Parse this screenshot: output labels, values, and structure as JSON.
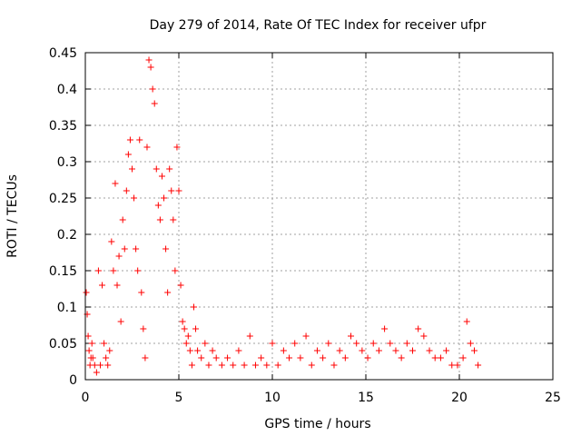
{
  "chart_data": {
    "type": "scatter",
    "title": "Day 279 of 2014, Rate Of TEC Index for receiver ufpr",
    "xlabel": "GPS time / hours",
    "ylabel": "ROTI / TECUs",
    "xlim": [
      0,
      25
    ],
    "ylim": [
      0,
      0.45
    ],
    "xticks": [
      "0",
      "5",
      "10",
      "15",
      "20",
      "25"
    ],
    "yticks": [
      "0",
      "0.05",
      "0.1",
      "0.15",
      "0.2",
      "0.25",
      "0.3",
      "0.35",
      "0.4",
      "0.45"
    ],
    "grid": true,
    "marker": "+",
    "color": "#ff0000",
    "series": [
      {
        "name": "ROTI",
        "x": [
          0.05,
          0.1,
          0.15,
          0.2,
          0.25,
          0.3,
          0.35,
          0.4,
          0.5,
          0.6,
          0.7,
          0.8,
          0.9,
          1.0,
          1.1,
          1.2,
          1.3,
          1.4,
          1.5,
          1.6,
          1.7,
          1.8,
          1.9,
          2.0,
          2.1,
          2.2,
          2.3,
          2.4,
          2.5,
          2.6,
          2.7,
          2.8,
          2.9,
          3.0,
          3.1,
          3.2,
          3.3,
          3.4,
          3.5,
          3.6,
          3.7,
          3.8,
          3.9,
          4.0,
          4.1,
          4.2,
          4.3,
          4.4,
          4.5,
          4.6,
          4.7,
          4.8,
          4.9,
          5.0,
          5.1,
          5.2,
          5.3,
          5.4,
          5.5,
          5.6,
          5.7,
          5.8,
          5.9,
          6.0,
          6.2,
          6.4,
          6.6,
          6.8,
          7.0,
          7.3,
          7.6,
          7.9,
          8.2,
          8.5,
          8.8,
          9.1,
          9.4,
          9.7,
          10.0,
          10.3,
          10.6,
          10.9,
          11.2,
          11.5,
          11.8,
          12.1,
          12.4,
          12.7,
          13.0,
          13.3,
          13.6,
          13.9,
          14.2,
          14.5,
          14.8,
          15.1,
          15.4,
          15.7,
          16.0,
          16.3,
          16.6,
          16.9,
          17.2,
          17.5,
          17.8,
          18.1,
          18.4,
          18.7,
          19.0,
          19.3,
          19.6,
          19.9,
          20.2,
          20.4,
          20.6,
          20.8,
          21.0
        ],
        "y": [
          0.12,
          0.09,
          0.06,
          0.04,
          0.02,
          0.03,
          0.05,
          0.03,
          0.02,
          0.01,
          0.15,
          0.02,
          0.13,
          0.05,
          0.03,
          0.02,
          0.04,
          0.19,
          0.15,
          0.27,
          0.13,
          0.17,
          0.08,
          0.22,
          0.18,
          0.26,
          0.31,
          0.33,
          0.29,
          0.25,
          0.18,
          0.15,
          0.33,
          0.12,
          0.07,
          0.03,
          0.32,
          0.44,
          0.43,
          0.4,
          0.38,
          0.29,
          0.24,
          0.22,
          0.28,
          0.25,
          0.18,
          0.12,
          0.29,
          0.26,
          0.22,
          0.15,
          0.32,
          0.26,
          0.13,
          0.08,
          0.07,
          0.05,
          0.06,
          0.04,
          0.02,
          0.1,
          0.07,
          0.04,
          0.03,
          0.05,
          0.02,
          0.04,
          0.03,
          0.02,
          0.03,
          0.02,
          0.04,
          0.02,
          0.06,
          0.02,
          0.03,
          0.02,
          0.05,
          0.02,
          0.04,
          0.03,
          0.05,
          0.03,
          0.06,
          0.02,
          0.04,
          0.03,
          0.05,
          0.02,
          0.04,
          0.03,
          0.06,
          0.05,
          0.04,
          0.03,
          0.05,
          0.04,
          0.07,
          0.05,
          0.04,
          0.03,
          0.05,
          0.04,
          0.07,
          0.06,
          0.04,
          0.03,
          0.03,
          0.04,
          0.02,
          0.02,
          0.03,
          0.08,
          0.05,
          0.04,
          0.02
        ]
      }
    ]
  }
}
